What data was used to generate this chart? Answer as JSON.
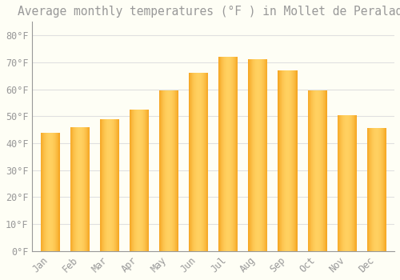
{
  "title": "Average monthly temperatures (°F ) in Mollet de Peralada",
  "months": [
    "Jan",
    "Feb",
    "Mar",
    "Apr",
    "May",
    "Jun",
    "Jul",
    "Aug",
    "Sep",
    "Oct",
    "Nov",
    "Dec"
  ],
  "values": [
    44,
    46,
    49,
    52.5,
    59.5,
    66,
    72,
    71,
    67,
    59.5,
    50.5,
    45.5
  ],
  "bar_color_left": "#F5A623",
  "bar_color_center": "#FFD060",
  "bar_color_right": "#F5A623",
  "background_color": "#FEFEF5",
  "grid_color": "#E0E0E0",
  "text_color": "#999999",
  "ylim": [
    0,
    85
  ],
  "yticks": [
    0,
    10,
    20,
    30,
    40,
    50,
    60,
    70,
    80
  ],
  "ytick_labels": [
    "0°F",
    "10°F",
    "20°F",
    "30°F",
    "40°F",
    "50°F",
    "60°F",
    "70°F",
    "80°F"
  ],
  "title_fontsize": 10.5,
  "tick_fontsize": 8.5,
  "bar_width": 0.65,
  "n_gradient_strips": 40
}
